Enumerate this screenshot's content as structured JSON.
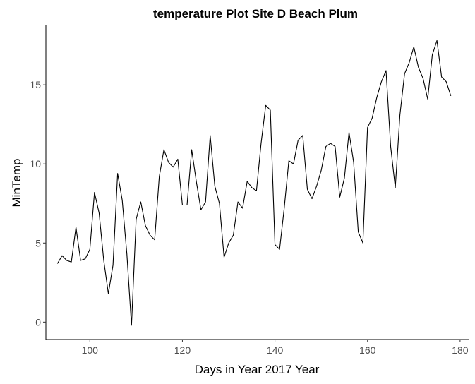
{
  "chart_data": {
    "type": "line",
    "title": "temperature Plot Site D Beach Plum",
    "xlabel": "Days in Year 2017 Year",
    "ylabel": "MinTemp",
    "xlim": [
      90.5,
      182
    ],
    "ylim": [
      -1.1,
      18.8
    ],
    "x_ticks": [
      100,
      120,
      140,
      160,
      180
    ],
    "y_ticks": [
      0,
      5,
      10,
      15
    ],
    "grid": false,
    "series": [
      {
        "x": [
          93,
          94,
          95,
          96,
          97,
          98,
          99,
          100,
          101,
          102,
          103,
          104,
          105,
          106,
          107,
          108,
          109,
          110,
          111,
          112,
          113,
          114,
          115,
          116,
          117,
          118,
          119,
          120,
          121,
          122,
          123,
          124,
          125,
          126,
          127,
          128,
          129,
          130,
          131,
          132,
          133,
          134,
          135,
          136,
          137,
          138,
          139,
          140,
          141,
          142,
          143,
          144,
          145,
          146,
          147,
          148,
          149,
          150,
          151,
          152,
          153,
          154,
          155,
          156,
          157,
          158,
          159,
          160,
          161,
          162,
          163,
          164,
          165,
          166,
          167,
          168,
          169,
          170,
          171,
          172,
          173,
          174,
          175,
          176,
          177,
          178
        ],
        "y": [
          3.7,
          4.2,
          3.9,
          3.8,
          6.0,
          3.9,
          4.0,
          4.6,
          8.2,
          6.9,
          3.9,
          1.8,
          3.6,
          9.4,
          7.7,
          4.3,
          -0.2,
          6.5,
          7.6,
          6.1,
          5.5,
          5.2,
          9.2,
          10.9,
          10.1,
          9.8,
          10.3,
          7.4,
          7.4,
          10.9,
          8.9,
          7.1,
          7.6,
          11.8,
          8.6,
          7.5,
          4.1,
          5.0,
          5.5,
          7.6,
          7.2,
          8.9,
          8.5,
          8.3,
          11.3,
          13.7,
          13.4,
          4.9,
          4.6,
          7.2,
          10.2,
          10.0,
          11.5,
          11.8,
          8.4,
          7.8,
          8.6,
          9.6,
          11.1,
          11.3,
          11.1,
          7.9,
          9.1,
          12.0,
          10.1,
          5.7,
          5.0,
          12.3,
          12.9,
          14.2,
          15.2,
          15.9,
          11.1,
          8.5,
          13.1,
          15.7,
          16.4,
          17.4,
          16.1,
          15.4,
          14.1,
          16.9,
          17.8,
          15.5,
          15.2,
          14.3
        ]
      }
    ]
  }
}
